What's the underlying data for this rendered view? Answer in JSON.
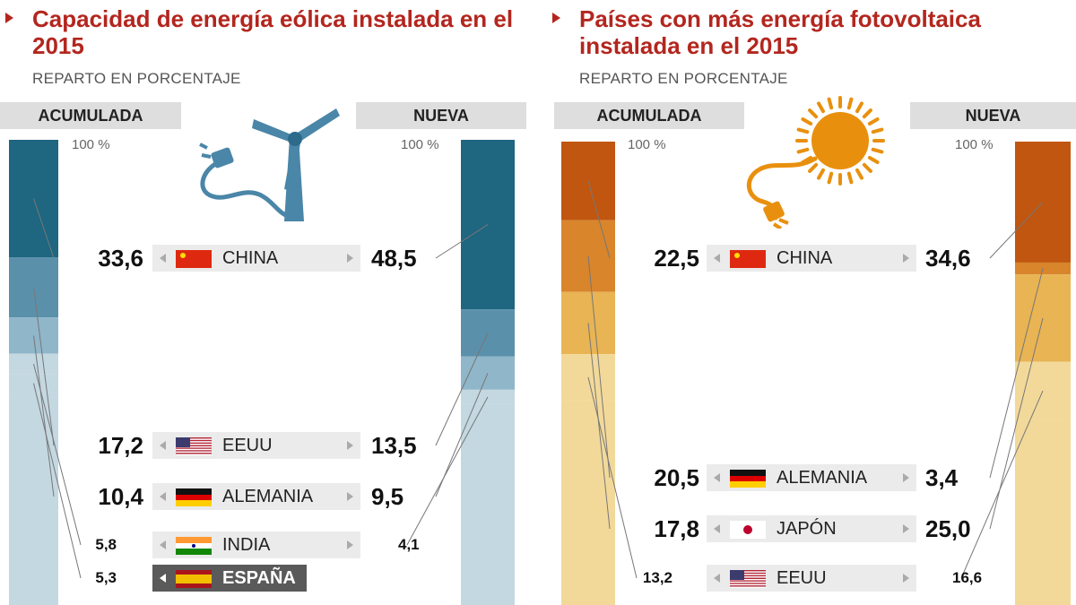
{
  "chart_data": [
    {
      "type": "bar",
      "title": "Capacidad de energía eólica instalada en el 2015",
      "subtitle": "REPARTO EN PORCENTAJE",
      "left_header": "ACUMULADA",
      "right_header": "NUEVA",
      "top_label_left": "100 %",
      "top_label_right": "100 %",
      "colors": [
        "#1f6680",
        "#5b90ab",
        "#90b6c9",
        "#c4d8e2"
      ],
      "rows": [
        {
          "country": "CHINA",
          "flag": "china",
          "acumulada": 33.6,
          "nueva": 48.5,
          "acumulada_label": "33,6",
          "nueva_label": "48,5"
        },
        {
          "country": "EEUU",
          "flag": "usa",
          "acumulada": 17.2,
          "nueva": 13.5,
          "acumulada_label": "17,2",
          "nueva_label": "13,5"
        },
        {
          "country": "ALEMANIA",
          "flag": "germany",
          "acumulada": 10.4,
          "nueva": 9.5,
          "acumulada_label": "10,4",
          "nueva_label": "9,5"
        },
        {
          "country": "INDIA",
          "flag": "india",
          "acumulada": 5.8,
          "nueva": 4.1,
          "acumulada_label": "5,8",
          "nueva_label": "4,1"
        },
        {
          "country": "ESPAÑA",
          "flag": "spain",
          "acumulada": 5.3,
          "nueva": null,
          "acumulada_label": "5,3",
          "nueva_label": "",
          "highlight": true
        }
      ]
    },
    {
      "type": "bar",
      "title": "Países con más energía fotovoltaica instalada en el 2015",
      "subtitle": "REPARTO EN PORCENTAJE",
      "left_header": "ACUMULADA",
      "right_header": "NUEVA",
      "top_label_left": "100 %",
      "top_label_right": "100 %",
      "colors": [
        "#c0560f",
        "#d8852c",
        "#e8b454",
        "#f2d99a"
      ],
      "rows": [
        {
          "country": "CHINA",
          "flag": "china",
          "acumulada": 22.5,
          "nueva": 34.6,
          "acumulada_label": "22,5",
          "nueva_label": "34,6"
        },
        {
          "country": "ALEMANIA",
          "flag": "germany",
          "acumulada": 20.5,
          "nueva": 3.4,
          "acumulada_label": "20,5",
          "nueva_label": "3,4"
        },
        {
          "country": "JAPÓN",
          "flag": "japan",
          "acumulada": 17.8,
          "nueva": 25.0,
          "acumulada_label": "17,8",
          "nueva_label": "25,0"
        },
        {
          "country": "EEUU",
          "flag": "usa",
          "acumulada": 13.2,
          "nueva": 16.6,
          "acumulada_label": "13,2",
          "nueva_label": "16,6"
        }
      ]
    }
  ],
  "icons": {
    "left": "wind-turbine-plug-icon",
    "right": "sun-plug-icon"
  }
}
